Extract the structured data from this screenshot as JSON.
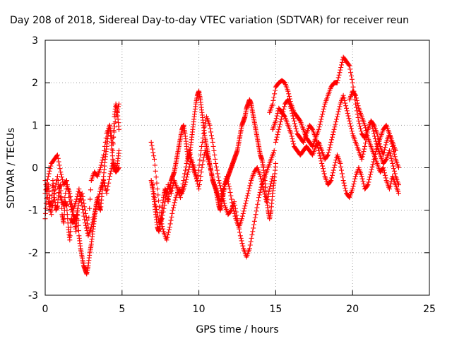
{
  "chart_data": {
    "type": "scatter",
    "title": "Day 208 of 2018, Sidereal Day-to-day VTEC variation (SDTVAR) for receiver reun",
    "xlabel": "GPS time / hours",
    "ylabel": "SDTVAR / TECUs",
    "xlim": [
      0,
      25
    ],
    "ylim": [
      -3,
      3
    ],
    "xticks": [
      0,
      5,
      10,
      15,
      20,
      25
    ],
    "yticks": [
      -3,
      -2,
      -1,
      0,
      1,
      2,
      3
    ],
    "xtick_labels": [
      "0",
      "5",
      "10",
      "15",
      "20",
      "25"
    ],
    "ytick_labels": [
      "-3",
      "-2",
      "-1",
      "0",
      "1",
      "2",
      "3"
    ],
    "grid": true,
    "marker": "+",
    "series": [
      {
        "name": "SDTVAR",
        "color": "#ff0000",
        "tracks": [
          {
            "x": [
              0.0,
              0.1,
              0.2,
              0.3,
              0.4,
              0.5,
              0.6,
              0.7,
              0.8,
              0.9,
              1.0,
              1.1,
              1.2,
              1.3,
              1.4,
              1.5,
              1.6,
              1.7,
              1.8,
              1.9,
              2.0,
              2.1,
              2.2,
              2.3,
              2.4,
              2.5,
              2.6,
              2.7,
              2.8,
              2.9,
              3.0,
              3.1,
              3.2,
              3.3,
              3.4,
              3.5,
              3.6,
              3.7,
              3.8,
              3.9,
              4.0,
              4.1,
              4.2,
              4.3,
              4.4,
              4.5,
              4.6,
              4.7,
              4.8
            ],
            "y": [
              -1.2,
              -0.6,
              -0.4,
              -0.8,
              -0.9,
              -0.3,
              -0.7,
              -1.0,
              -0.9,
              -0.5,
              -0.4,
              -1.1,
              -1.3,
              -0.8,
              -0.9,
              -1.4,
              -1.7,
              -1.2,
              -1.3,
              -1.2,
              -1.5,
              -1.0,
              -1.6,
              -1.9,
              -2.1,
              -2.3,
              -2.4,
              -2.5,
              -2.3,
              -2.0,
              -1.8,
              -1.5,
              -1.2,
              -0.9,
              -0.7,
              -0.9,
              -1.0,
              -0.6,
              -0.2,
              0.2,
              0.5,
              0.8,
              1.0,
              0.6,
              0.2,
              0.0,
              -0.1,
              0.1,
              0.4
            ]
          },
          {
            "x": [
              0.0,
              0.2,
              0.4,
              0.6,
              0.8,
              1.0,
              1.2,
              1.4,
              1.6,
              1.8,
              2.0,
              2.2,
              2.4,
              2.6,
              2.8,
              3.0,
              3.2,
              3.4,
              3.6,
              3.8,
              4.0,
              4.2,
              4.4,
              4.6,
              4.8
            ],
            "y": [
              -0.3,
              -0.8,
              -1.1,
              -0.6,
              -0.2,
              -0.7,
              -0.9,
              -0.4,
              -0.6,
              -1.0,
              -0.8,
              -0.5,
              -0.9,
              -1.3,
              -1.6,
              -1.4,
              -1.1,
              -0.8,
              -0.5,
              -0.3,
              -0.6,
              -0.2,
              0.1,
              -0.1,
              0.0
            ]
          },
          {
            "x": [
              0.0,
              0.2,
              0.4,
              0.6,
              0.8,
              1.0,
              1.2,
              1.4,
              1.6,
              1.8,
              2.0,
              2.2,
              2.4,
              2.6,
              2.8,
              3.0,
              3.2,
              3.4,
              3.6,
              3.8,
              4.0,
              4.2,
              4.4,
              4.6,
              4.8
            ],
            "y": [
              -0.6,
              -0.2,
              0.1,
              0.2,
              0.3,
              -0.1,
              -0.4,
              -0.3,
              -0.8,
              -1.1,
              -1.2,
              -0.8,
              -0.6,
              -1.0,
              -1.4,
              -0.3,
              -0.1,
              -0.2,
              0.0,
              0.3,
              0.8,
              1.0,
              0.6,
              1.2,
              1.5
            ]
          },
          {
            "x": [
              4.4,
              4.5,
              4.6,
              4.7,
              4.8
            ],
            "y": [
              0.4,
              1.2,
              1.5,
              1.3,
              0.9
            ]
          },
          {
            "x": [
              6.9,
              7.0,
              7.1,
              7.2,
              7.3,
              7.4,
              7.5,
              7.6,
              7.7,
              7.8,
              7.9,
              8.0,
              8.1,
              8.2,
              8.3,
              8.4,
              8.5,
              8.6,
              8.7,
              8.8,
              8.9,
              9.0,
              9.1,
              9.2,
              9.3,
              9.4,
              9.5,
              9.6,
              9.7,
              9.8,
              9.9,
              10.0,
              10.1,
              10.2,
              10.3,
              10.4,
              10.5,
              10.6,
              10.7,
              10.8,
              10.9,
              11.0,
              11.1,
              11.2,
              11.3,
              11.4,
              11.5,
              11.6,
              11.7,
              11.8,
              11.9,
              12.0,
              12.1,
              12.2,
              12.3,
              12.4,
              12.5,
              12.6,
              12.7,
              12.8,
              12.9,
              13.0,
              13.1,
              13.2,
              13.3,
              13.4,
              13.5,
              13.6,
              13.7,
              13.8,
              13.9,
              14.0,
              14.1,
              14.2,
              14.3,
              14.4,
              14.5,
              14.6,
              14.7,
              14.8,
              14.9,
              15.0
            ],
            "y": [
              -0.3,
              -0.5,
              -0.8,
              -1.1,
              -1.4,
              -1.5,
              -1.3,
              -1.0,
              -0.7,
              -0.5,
              -0.6,
              -0.8,
              -0.5,
              -0.3,
              -0.2,
              -0.1,
              0.1,
              0.3,
              0.5,
              0.7,
              0.9,
              1.0,
              0.8,
              0.5,
              0.2,
              0.3,
              0.6,
              0.9,
              1.2,
              1.5,
              1.7,
              1.8,
              1.6,
              1.3,
              1.0,
              0.7,
              0.5,
              0.3,
              0.1,
              -0.1,
              -0.3,
              -0.4,
              -0.5,
              -0.7,
              -0.9,
              -1.0,
              -0.8,
              -0.6,
              -0.4,
              -0.3,
              -0.2,
              -0.1,
              0.0,
              0.1,
              0.2,
              0.3,
              0.4,
              0.6,
              0.8,
              1.0,
              1.1,
              1.2,
              1.4,
              1.5,
              1.6,
              1.5,
              1.3,
              1.1,
              0.9,
              0.7,
              0.5,
              0.3,
              0.2,
              0.0,
              -0.3,
              -0.7,
              -1.0,
              -1.2,
              -1.0,
              -0.6,
              -0.3,
              0.1
            ]
          },
          {
            "x": [
              6.9,
              7.1,
              7.3,
              7.5,
              7.7,
              7.9,
              8.1,
              8.3,
              8.5,
              8.7,
              8.9,
              9.1,
              9.3,
              9.5,
              9.7,
              9.9,
              10.1,
              10.3,
              10.5,
              10.7,
              10.9,
              11.1,
              11.3,
              11.5,
              11.7,
              11.9,
              12.1,
              12.3,
              12.5,
              12.7,
              12.9,
              13.1,
              13.3,
              13.5,
              13.7,
              13.9,
              14.1,
              14.3,
              14.5,
              14.7,
              14.9
            ],
            "y": [
              0.6,
              0.2,
              -0.5,
              -1.2,
              -1.5,
              -1.7,
              -1.4,
              -1.0,
              -0.7,
              -0.5,
              -0.6,
              -0.4,
              -0.1,
              0.2,
              0.0,
              -0.3,
              0.3,
              0.8,
              1.2,
              1.0,
              0.6,
              0.1,
              -0.3,
              -0.6,
              -0.9,
              -1.1,
              -1.0,
              -0.8,
              -1.2,
              -1.6,
              -1.9,
              -2.1,
              -1.9,
              -1.5,
              -1.1,
              -0.7,
              -0.4,
              -0.2,
              0.0,
              0.2,
              0.4
            ]
          },
          {
            "x": [
              7.0,
              7.2,
              7.4,
              7.6,
              7.8,
              8.0,
              8.2,
              8.4,
              8.6,
              8.8,
              9.0,
              9.2,
              9.4,
              9.6,
              9.8,
              10.0,
              10.2,
              10.4,
              10.6,
              10.8,
              11.0,
              11.2,
              11.4,
              11.6,
              11.8,
              12.0,
              12.2,
              12.4,
              12.6,
              12.8,
              13.0,
              13.2,
              13.4,
              13.6,
              13.8,
              14.0,
              14.2,
              14.4,
              14.6,
              14.8
            ],
            "y": [
              -0.4,
              -0.9,
              -1.3,
              -1.2,
              -0.8,
              -0.4,
              -0.6,
              -0.3,
              -0.5,
              -0.7,
              -0.3,
              0.1,
              0.4,
              0.0,
              -0.2,
              -0.5,
              0.0,
              0.4,
              0.2,
              -0.1,
              -0.4,
              -0.6,
              -0.8,
              -0.5,
              -0.2,
              -0.5,
              -0.9,
              -1.2,
              -1.4,
              -1.2,
              -0.9,
              -0.6,
              -0.3,
              -0.1,
              0.0,
              -0.2,
              -0.5,
              -0.8,
              -0.5,
              -0.2
            ]
          },
          {
            "x": [
              14.6,
              14.8,
              15.0,
              15.2,
              15.4,
              15.6,
              15.8,
              16.0,
              16.2,
              16.4,
              16.6,
              16.8,
              17.0,
              17.2,
              17.4,
              17.6,
              17.8,
              18.0,
              18.2,
              18.4,
              18.6,
              18.8,
              19.0,
              19.2,
              19.4,
              19.6,
              19.8,
              20.0,
              20.2,
              20.4,
              20.6,
              20.8,
              21.0,
              21.2,
              21.4,
              21.6,
              21.8,
              22.0,
              22.2,
              22.4,
              22.6,
              22.8,
              23.0
            ],
            "y": [
              1.3,
              1.5,
              1.9,
              2.0,
              2.05,
              2.0,
              1.8,
              1.5,
              1.3,
              1.2,
              1.1,
              0.9,
              0.7,
              0.6,
              0.5,
              0.7,
              0.9,
              1.2,
              1.5,
              1.7,
              1.9,
              2.0,
              2.0,
              2.3,
              2.6,
              2.5,
              2.4,
              2.0,
              1.5,
              1.1,
              0.8,
              0.7,
              0.9,
              1.1,
              1.0,
              0.8,
              0.5,
              0.3,
              0.6,
              0.8,
              0.5,
              0.2,
              0.0
            ]
          },
          {
            "x": [
              14.8,
              15.0,
              15.2,
              15.4,
              15.6,
              15.8,
              16.0,
              16.2,
              16.4,
              16.6,
              16.8,
              17.0,
              17.2,
              17.4,
              17.6,
              17.8,
              18.0,
              18.2,
              18.4,
              18.6,
              18.8,
              19.0,
              19.2,
              19.4,
              19.6,
              19.8,
              20.0,
              20.2,
              20.4,
              20.6,
              20.8,
              21.0,
              21.2,
              21.4,
              21.6,
              21.8,
              22.0,
              22.2,
              22.4,
              22.6,
              22.8,
              23.0
            ],
            "y": [
              0.9,
              1.1,
              1.4,
              1.3,
              1.2,
              1.0,
              0.8,
              0.5,
              0.4,
              0.3,
              0.4,
              0.5,
              0.4,
              0.3,
              0.5,
              0.6,
              0.4,
              0.2,
              0.3,
              0.6,
              0.9,
              1.2,
              1.5,
              1.7,
              1.4,
              1.1,
              0.8,
              0.6,
              0.4,
              0.2,
              0.5,
              0.9,
              1.1,
              0.8,
              0.5,
              0.3,
              0.1,
              0.2,
              0.4,
              0.1,
              -0.2,
              -0.4
            ]
          },
          {
            "x": [
              15.0,
              15.2,
              15.4,
              15.6,
              15.8,
              16.0,
              16.2,
              16.4,
              16.6,
              16.8,
              17.0,
              17.2,
              17.4,
              17.6,
              17.8,
              18.0,
              18.2,
              18.4,
              18.6,
              18.8,
              19.0,
              19.2,
              19.4,
              19.6,
              19.8,
              20.0,
              20.2,
              20.4,
              20.6,
              20.8,
              21.0,
              21.2,
              21.4,
              21.6,
              21.8,
              22.0,
              22.2,
              22.4,
              22.6,
              22.8
            ],
            "y": [
              0.6,
              0.9,
              1.2,
              1.5,
              1.6,
              1.4,
              1.1,
              0.8,
              0.7,
              0.6,
              0.8,
              1.0,
              0.9,
              0.7,
              0.4,
              0.1,
              -0.2,
              -0.4,
              -0.3,
              0.0,
              0.3,
              0.1,
              -0.3,
              -0.6,
              -0.7,
              -0.5,
              -0.2,
              0.0,
              -0.2,
              -0.5,
              -0.4,
              -0.1,
              0.2,
              0.5,
              0.7,
              0.9,
              1.0,
              0.8,
              0.6,
              0.4
            ]
          },
          {
            "x": [
              19.8,
              20.0,
              20.2,
              20.4,
              20.6,
              20.8,
              21.0,
              21.2,
              21.4,
              21.6,
              21.8,
              22.0,
              22.2,
              22.4,
              22.6,
              22.8,
              23.0
            ],
            "y": [
              1.6,
              1.8,
              1.7,
              1.4,
              1.2,
              1.0,
              0.7,
              0.5,
              0.3,
              0.1,
              -0.1,
              0.0,
              -0.3,
              -0.5,
              -0.2,
              -0.4,
              -0.6
            ]
          }
        ]
      }
    ]
  }
}
